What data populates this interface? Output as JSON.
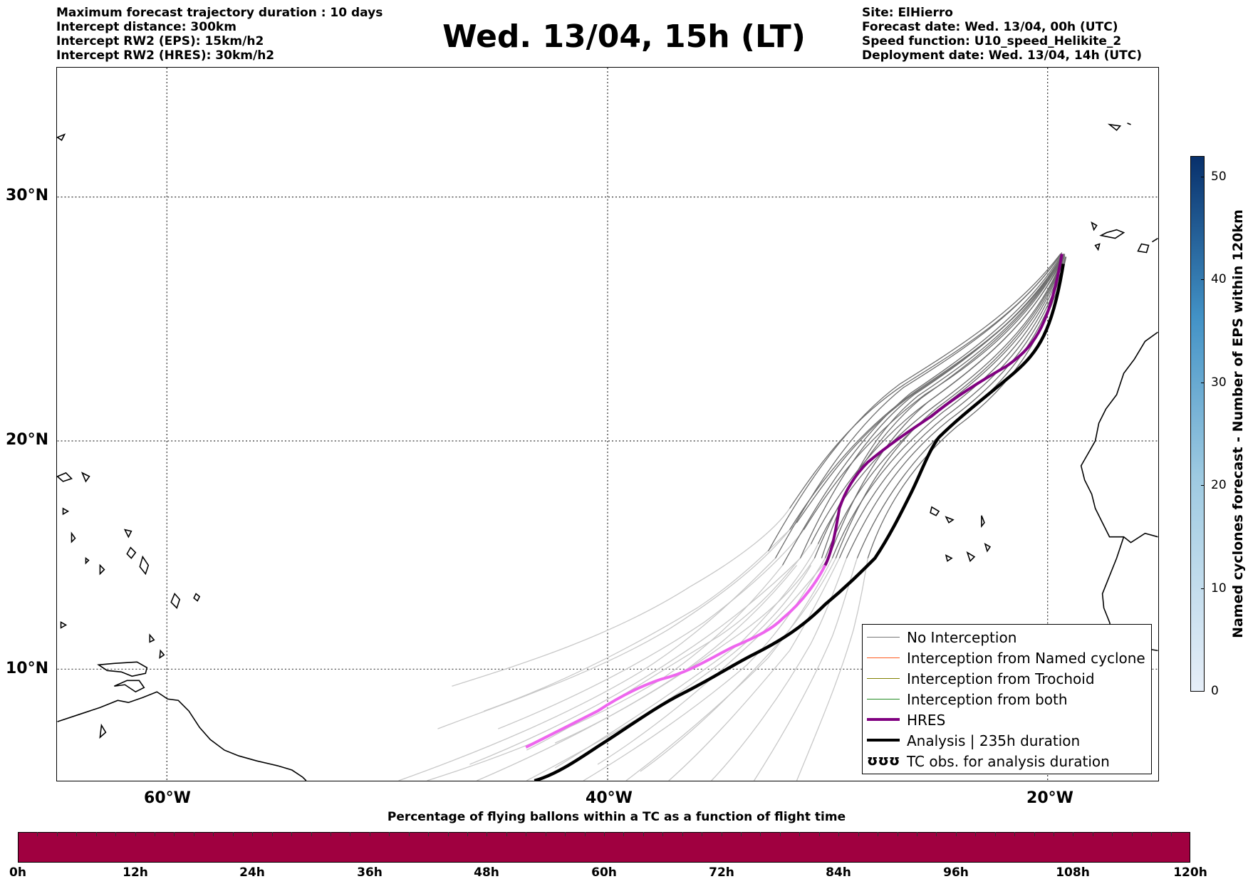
{
  "header": {
    "left_lines": [
      "Maximum forecast trajectory duration : 10 days",
      "Intercept distance: 300km",
      "Intercept RW2 (EPS):  15km/h2",
      "Intercept RW2 (HRES): 30km/h2"
    ],
    "title": "Wed. 13/04, 15h (LT)",
    "right_lines": [
      "Site: ElHierro",
      "Forecast date: Wed. 13/04, 00h (UTC)",
      "Speed function: U10_speed_Helikite_2",
      "Deployment date: Wed. 13/04, 14h (UTC)"
    ]
  },
  "map": {
    "lat_labels": [
      "30°N",
      "20°N",
      "10°N"
    ],
    "lon_labels": [
      "60°W",
      "40°W",
      "20°W"
    ],
    "colors": {
      "eps_dark": "#6e6e6e",
      "eps_light": "#c8c8c8",
      "hres": "#800080",
      "hres_light": "#ee66ee",
      "analysis": "#000000",
      "coast": "#000000"
    }
  },
  "legend": {
    "items": [
      {
        "label": "No Interception",
        "color": "#777777",
        "style": "line-thin"
      },
      {
        "label": "Interception from Named cyclone",
        "color": "#ff5a1f",
        "style": "line-thin"
      },
      {
        "label": "Interception from Trochoid",
        "color": "#808000",
        "style": "line-thin"
      },
      {
        "label": "Interception from both",
        "color": "#228b22",
        "style": "line-thin"
      },
      {
        "label": "HRES",
        "color": "#800080",
        "style": "line-thick"
      },
      {
        "label": "Analysis | 235h duration",
        "color": "#000000",
        "style": "line-thick"
      },
      {
        "label": "TC obs. for analysis duration",
        "color": "#000000",
        "style": "marker"
      }
    ],
    "marker_glyph": "ʊʊʊ"
  },
  "colorbar_vertical": {
    "label": "Named cyclones forecast - Number of EPS within 120km",
    "ticks": [
      "0",
      "10",
      "20",
      "30",
      "40",
      "50"
    ],
    "range": [
      0,
      52
    ],
    "color_low": "#e6eef8",
    "color_high": "#08306b"
  },
  "colorbar_horizontal": {
    "title": "Percentage of flying ballons within a TC as a function of flight time",
    "ticks": [
      "0h",
      "12h",
      "24h",
      "36h",
      "48h",
      "60h",
      "72h",
      "84h",
      "96h",
      "108h",
      "120h"
    ],
    "fill_color": "#a00040"
  }
}
